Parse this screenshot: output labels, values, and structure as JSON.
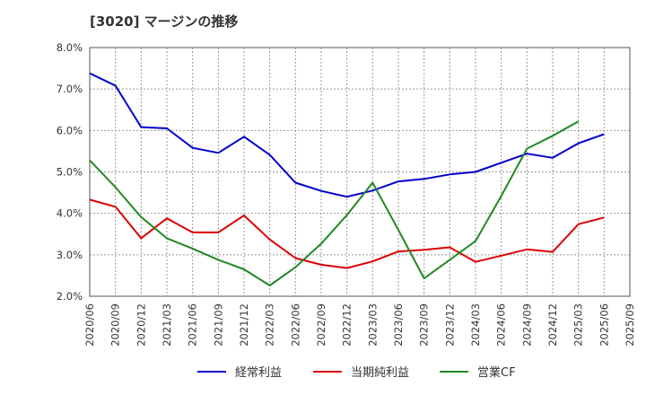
{
  "chart_data": {
    "type": "line",
    "title": "[3020]  マージンの推移",
    "xlabel": "",
    "ylabel": "",
    "ylim": [
      2.0,
      8.0
    ],
    "grid": true,
    "legend_position": "bottom",
    "categories": [
      "2020/06",
      "2020/09",
      "2020/12",
      "2021/03",
      "2021/06",
      "2021/09",
      "2021/12",
      "2022/03",
      "2022/06",
      "2022/09",
      "2022/12",
      "2023/03",
      "2023/06",
      "2023/09",
      "2023/12",
      "2024/03",
      "2024/06",
      "2024/09",
      "2024/12",
      "2025/03",
      "2025/06",
      "2025/09"
    ],
    "y_ticks": [
      "2.0%",
      "3.0%",
      "4.0%",
      "5.0%",
      "6.0%",
      "7.0%",
      "8.0%"
    ],
    "series": [
      {
        "name": "経常利益",
        "color": "#0000cc",
        "values": [
          7.38,
          7.08,
          6.08,
          6.05,
          5.58,
          5.46,
          5.85,
          5.41,
          4.74,
          4.54,
          4.4,
          4.55,
          4.77,
          4.83,
          4.94,
          5.0,
          5.22,
          5.44,
          5.34,
          5.69,
          5.91,
          null
        ]
      },
      {
        "name": "当期純利益",
        "color": "#dd0000",
        "values": [
          4.33,
          4.16,
          3.4,
          3.88,
          3.54,
          3.54,
          3.95,
          3.37,
          2.92,
          2.76,
          2.68,
          2.84,
          3.08,
          3.12,
          3.18,
          2.83,
          2.98,
          3.13,
          3.07,
          3.74,
          3.9,
          null
        ]
      },
      {
        "name": "営業CF",
        "color": "#228822",
        "values": [
          5.28,
          4.63,
          3.91,
          3.4,
          3.15,
          2.88,
          2.65,
          2.26,
          2.7,
          3.27,
          3.96,
          4.74,
          3.6,
          2.43,
          2.88,
          3.33,
          4.42,
          5.56,
          5.87,
          6.22,
          null,
          null
        ]
      }
    ]
  }
}
